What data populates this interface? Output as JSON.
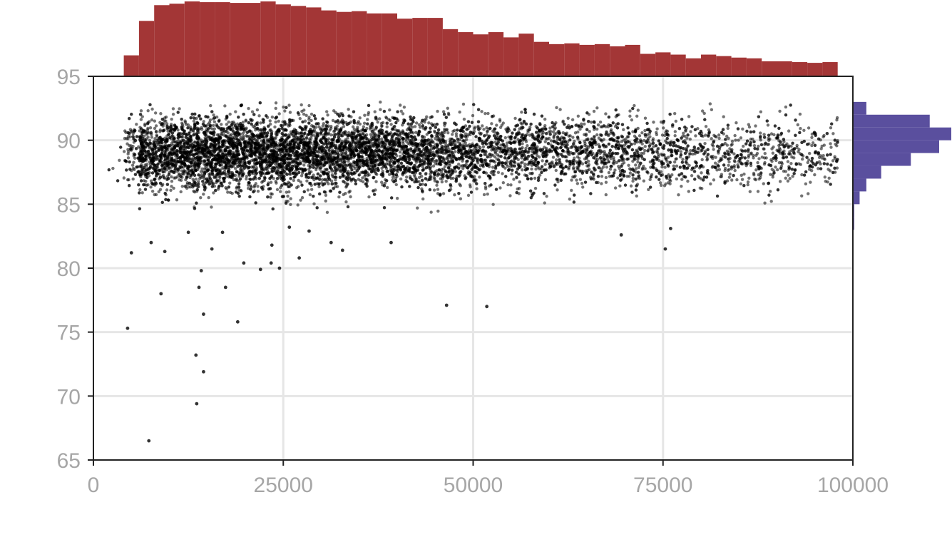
{
  "colors": {
    "points": "#000000",
    "top_histogram": "#a33636",
    "right_histogram": "#5a4f9e",
    "grid": "#e6e6e6",
    "axis": "#222222",
    "tick_labels": "#a6a6a6"
  },
  "chart_data": [
    {
      "id": "scatter",
      "type": "scatter",
      "title": "",
      "xlabel": "",
      "ylabel": "",
      "xlim": [
        0,
        100000
      ],
      "ylim": [
        65,
        95
      ],
      "x_ticks": [
        0,
        25000,
        50000,
        75000,
        100000
      ],
      "x_tick_labels": [
        "0",
        "25000",
        "50000",
        "75000",
        "100000"
      ],
      "y_ticks": [
        65,
        70,
        75,
        80,
        85,
        90,
        95
      ],
      "y_tick_labels": [
        "65",
        "70",
        "75",
        "80",
        "85",
        "90",
        "95"
      ],
      "grid": true,
      "legend": "none",
      "distribution_note_sampled": true,
      "outliers": [
        {
          "x": 7300,
          "y": 66.5
        },
        {
          "x": 13600,
          "y": 69.4
        },
        {
          "x": 14500,
          "y": 71.9
        },
        {
          "x": 13500,
          "y": 73.2
        },
        {
          "x": 4500,
          "y": 75.3
        },
        {
          "x": 19000,
          "y": 75.8
        },
        {
          "x": 14500,
          "y": 76.4
        },
        {
          "x": 8900,
          "y": 78.0
        },
        {
          "x": 13900,
          "y": 78.5
        },
        {
          "x": 17400,
          "y": 78.5
        },
        {
          "x": 14200,
          "y": 79.8
        },
        {
          "x": 22000,
          "y": 79.9
        },
        {
          "x": 24500,
          "y": 80.0
        },
        {
          "x": 19800,
          "y": 80.4
        },
        {
          "x": 23400,
          "y": 80.4
        },
        {
          "x": 27100,
          "y": 80.8
        },
        {
          "x": 5000,
          "y": 81.2
        },
        {
          "x": 9400,
          "y": 81.3
        },
        {
          "x": 15600,
          "y": 81.5
        },
        {
          "x": 32800,
          "y": 81.4
        },
        {
          "x": 23500,
          "y": 81.8
        },
        {
          "x": 31300,
          "y": 82.0
        },
        {
          "x": 7600,
          "y": 82.0
        },
        {
          "x": 39200,
          "y": 82.0
        },
        {
          "x": 46500,
          "y": 77.1
        },
        {
          "x": 51800,
          "y": 77.0
        },
        {
          "x": 69500,
          "y": 82.6
        },
        {
          "x": 75300,
          "y": 81.5
        },
        {
          "x": 76000,
          "y": 83.1
        },
        {
          "x": 12500,
          "y": 82.8
        },
        {
          "x": 28400,
          "y": 82.9
        },
        {
          "x": 25800,
          "y": 83.2
        },
        {
          "x": 17000,
          "y": 82.8
        }
      ],
      "dense_cloud": {
        "x_range": [
          3000,
          100000
        ],
        "y_center": 89.0,
        "y_spread": 1.6,
        "density_peak_x": 12000
      }
    },
    {
      "id": "top-histogram",
      "type": "bar",
      "title": "",
      "xlim": [
        0,
        100000
      ],
      "bin_start": 2000,
      "bin_width": 2000,
      "values": [
        1,
        28,
        74,
        95,
        97,
        100,
        99,
        99,
        98,
        98,
        100,
        96,
        94,
        92,
        88,
        86,
        87,
        84,
        84,
        77,
        78,
        78,
        63,
        59,
        56,
        59,
        52,
        57,
        46,
        43,
        44,
        42,
        43,
        40,
        42,
        30,
        32,
        29,
        24,
        29,
        27,
        25,
        24,
        20,
        20,
        19,
        18,
        19
      ]
    },
    {
      "id": "right-histogram",
      "type": "bar",
      "title": "",
      "ylim": [
        65,
        95
      ],
      "bin_start": 83.0,
      "bin_width": 1.0,
      "values": [
        1,
        1,
        5,
        10,
        21,
        43,
        64,
        73,
        57,
        10
      ]
    }
  ]
}
